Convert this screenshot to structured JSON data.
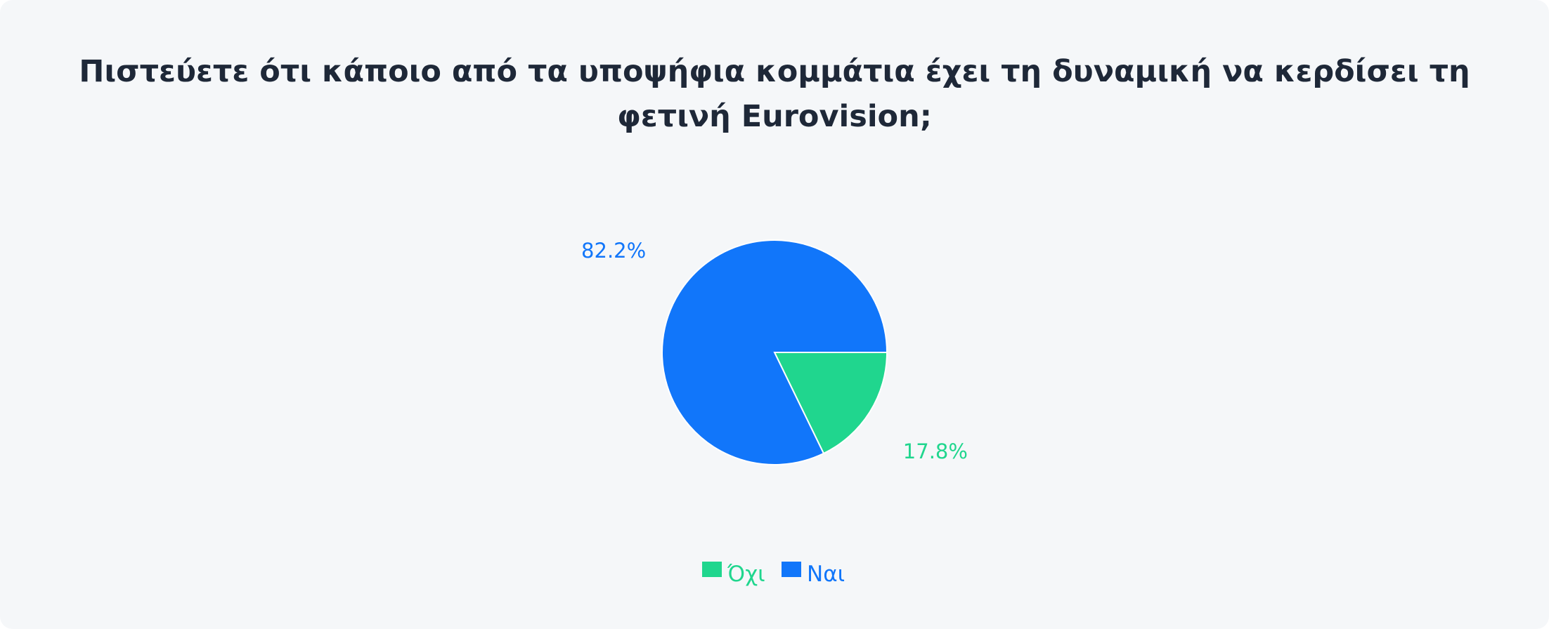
{
  "chart_data": {
    "type": "pie",
    "title": "Πιστεύετε ότι κάποιο από τα υποψήφια κομμάτια έχει τη δυναμική να κερδίσει τη φετινή Eurovision;",
    "slices": [
      {
        "label": "Όχι",
        "value": 17.8,
        "display": "17.8%",
        "color": "#20d68e"
      },
      {
        "label": "Ναι",
        "value": 82.2,
        "display": "82.2%",
        "color": "#1176fa"
      }
    ],
    "legend_position": "bottom"
  }
}
